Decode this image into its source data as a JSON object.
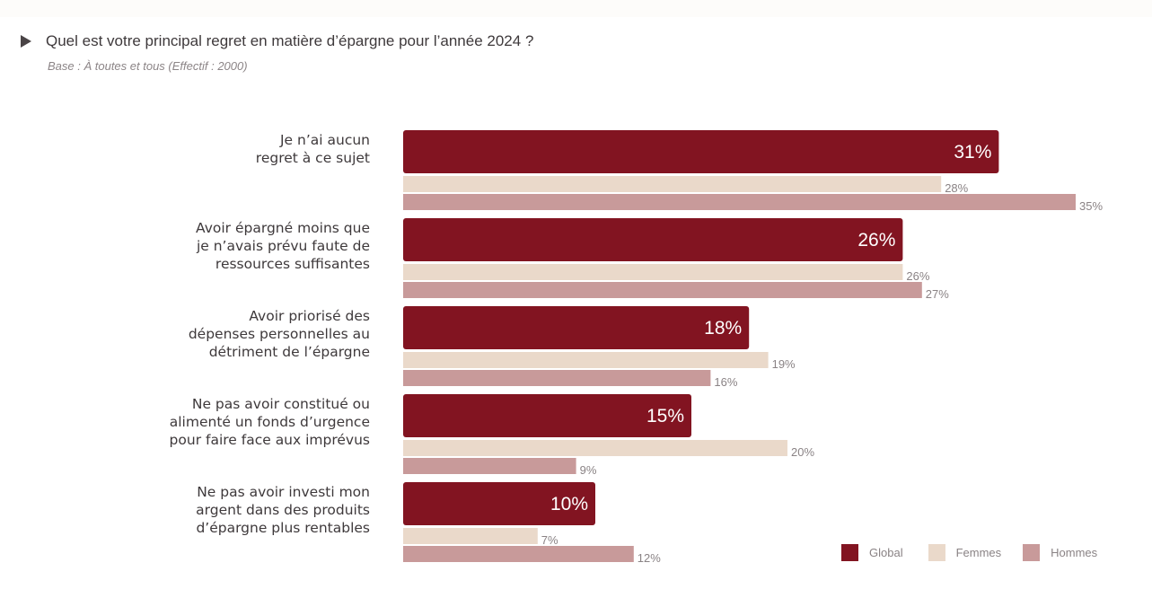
{
  "header": {
    "title": "Quel est votre principal regret en matière d’épargne pour l’année 2024 ?",
    "subtitle": "Base : À toutes et tous (Effectif : 2000)"
  },
  "colors": {
    "Global": "#821421",
    "Femmes": "#ead9ca",
    "Hommes": "#c89a9a"
  },
  "chart_data": {
    "type": "bar",
    "orientation": "horizontal",
    "title": "Quel est votre principal regret en matière d’épargne pour l’année 2024 ?",
    "subtitle": "Base : À toutes et tous (Effectif : 2000)",
    "xlabel": "",
    "ylabel": "",
    "xlim": [
      0,
      38
    ],
    "grid": false,
    "legend_position": "bottom-right",
    "categories": [
      [
        "Je n’ai aucun",
        "regret à ce sujet"
      ],
      [
        "Avoir épargné moins que",
        "je n’avais prévu faute de",
        "ressources suffisantes"
      ],
      [
        "Avoir priorisé des",
        "dépenses personnelles au",
        "détriment de l’épargne"
      ],
      [
        "Ne pas avoir constitué ou",
        "alimenté un fonds d’urgence",
        "pour faire face aux imprévus"
      ],
      [
        "Ne pas avoir investi mon",
        "argent dans des produits",
        "d’épargne plus rentables"
      ]
    ],
    "series": [
      {
        "name": "Global",
        "values": [
          31,
          26,
          18,
          15,
          10
        ],
        "labels": [
          "31%",
          "26%",
          "18%",
          "15%",
          "10%"
        ]
      },
      {
        "name": "Femmes",
        "values": [
          28,
          26,
          19,
          20,
          7
        ],
        "labels": [
          "28%",
          "26%",
          "19%",
          "20%",
          "7%"
        ]
      },
      {
        "name": "Hommes",
        "values": [
          35,
          27,
          16,
          9,
          12
        ],
        "labels": [
          "35%",
          "27%",
          "16%",
          "9%",
          "12%"
        ]
      }
    ]
  }
}
